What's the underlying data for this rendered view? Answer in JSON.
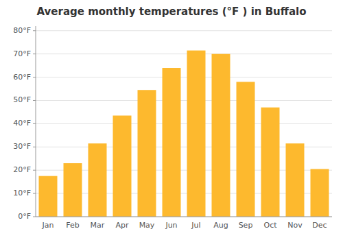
{
  "chart_data": {
    "type": "bar",
    "title": "Average monthly temperatures (°F ) in Buffalo",
    "categories": [
      "Jan",
      "Feb",
      "Mar",
      "Apr",
      "May",
      "Jun",
      "Jul",
      "Aug",
      "Sep",
      "Oct",
      "Nov",
      "Dec"
    ],
    "values": [
      17.5,
      23.0,
      31.5,
      43.5,
      54.5,
      64.0,
      71.5,
      70.0,
      58.0,
      47.0,
      31.5,
      20.5
    ],
    "color": "#FDB92E",
    "ylim": [
      0,
      82
    ],
    "yticks": [
      {
        "value": 0,
        "label": "0°F"
      },
      {
        "value": 10,
        "label": "10°F"
      },
      {
        "value": 20,
        "label": "20°F"
      },
      {
        "value": 30,
        "label": "30°F"
      },
      {
        "value": 40,
        "label": "40°F"
      },
      {
        "value": 50,
        "label": "50°F"
      },
      {
        "value": 60,
        "label": "60°F"
      },
      {
        "value": 70,
        "label": "70°F"
      },
      {
        "value": 80,
        "label": "80°F"
      }
    ],
    "grid": true
  }
}
